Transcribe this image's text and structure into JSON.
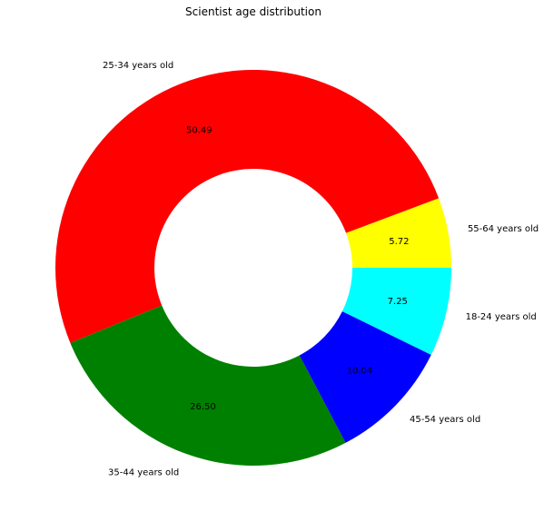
{
  "chart_data": {
    "type": "pie",
    "variant": "donut",
    "title": "Scientist age distribution",
    "slices": [
      {
        "label": "55-64 years old",
        "value": 5.72,
        "value_label": "5.72",
        "color": "#ffff00"
      },
      {
        "label": "25-34 years old",
        "value": 50.49,
        "value_label": "50.49",
        "color": "#ff0000"
      },
      {
        "label": "35-44 years old",
        "value": 26.5,
        "value_label": "26.50",
        "color": "#008000"
      },
      {
        "label": "45-54 years old",
        "value": 10.04,
        "value_label": "10.04",
        "color": "#0000ff"
      },
      {
        "label": "18-24 years old",
        "value": 7.25,
        "value_label": "7.25",
        "color": "#00ffff"
      }
    ],
    "start_angle_deg": 0,
    "direction": "counterclockwise",
    "legend": "none"
  }
}
